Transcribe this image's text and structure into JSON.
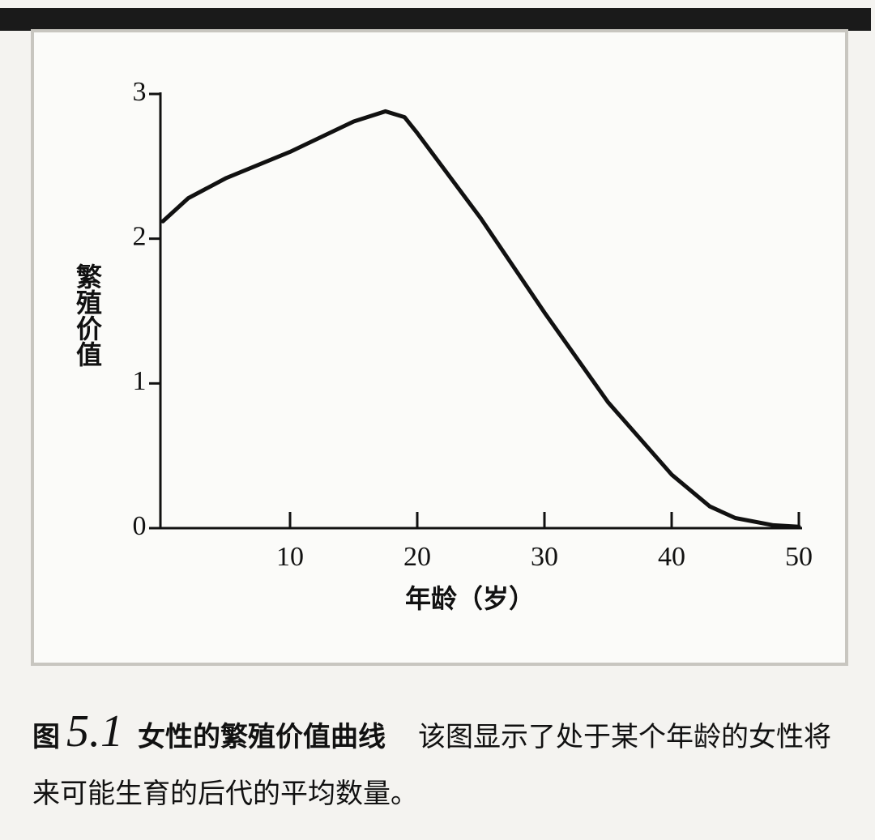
{
  "chart_data": {
    "type": "line",
    "figure_label": "图",
    "figure_number": "5.1",
    "title": "女性的繁殖价值曲线",
    "caption": "该图显示了处于某个年龄的女性将来可能生育的后代的平均数量。",
    "x_label": "年龄（岁）",
    "y_label": "繁殖价值",
    "x": [
      0,
      2,
      5,
      10,
      15,
      17.5,
      19,
      20,
      25,
      30,
      35,
      40,
      43,
      45,
      48,
      50
    ],
    "series": [
      {
        "color": "#111111",
        "values": [
          2.12,
          2.28,
          2.42,
          2.6,
          2.81,
          2.88,
          2.84,
          2.73,
          2.14,
          1.49,
          0.87,
          0.37,
          0.15,
          0.07,
          0.02,
          0.01
        ]
      }
    ],
    "xlim": [
      0,
      50
    ],
    "ylim": [
      0,
      3
    ],
    "xticks": [
      10,
      20,
      30,
      40,
      50
    ],
    "yticks": [
      0,
      1,
      2,
      3
    ]
  }
}
